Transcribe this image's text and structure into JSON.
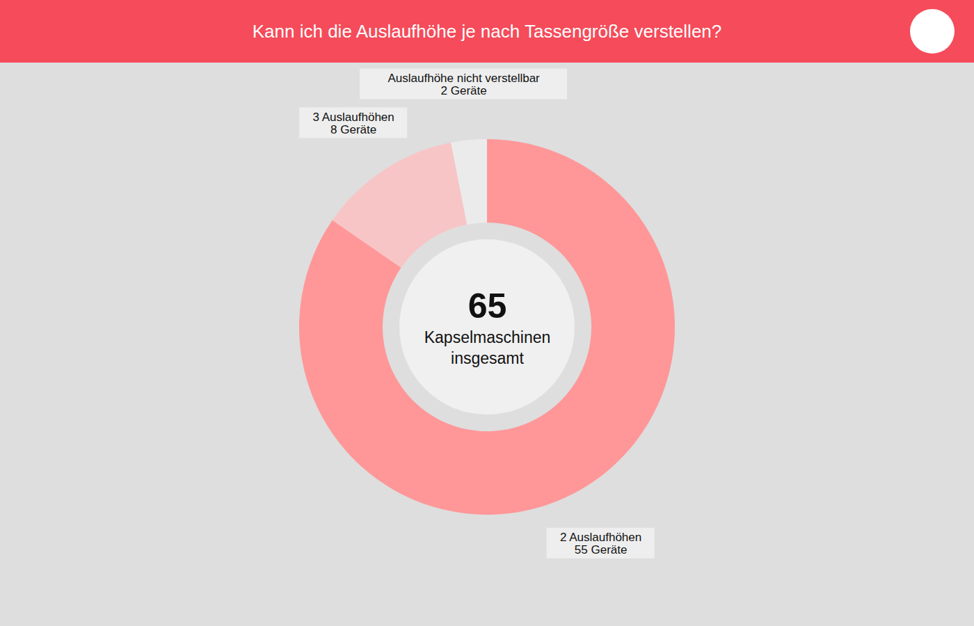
{
  "chart_data": {
    "type": "donut",
    "title": "Kann ich die Auslaufhöhe je nach Tassengröße verstellen?",
    "center_value": 65,
    "center_label": "Kapselmaschinen insgesamt",
    "categories": [
      "2 Auslaufhöhen",
      "3 Auslaufhöhen",
      "Auslaufhöhe nicht verstellbar"
    ],
    "values": [
      55,
      8,
      2
    ],
    "value_labels": [
      "55 Geräte",
      "8 Geräte",
      "2 Geräte"
    ],
    "colors": [
      "#ff9799",
      "#f8c5c6",
      "#ebebeb"
    ],
    "data_labels": true
  }
}
